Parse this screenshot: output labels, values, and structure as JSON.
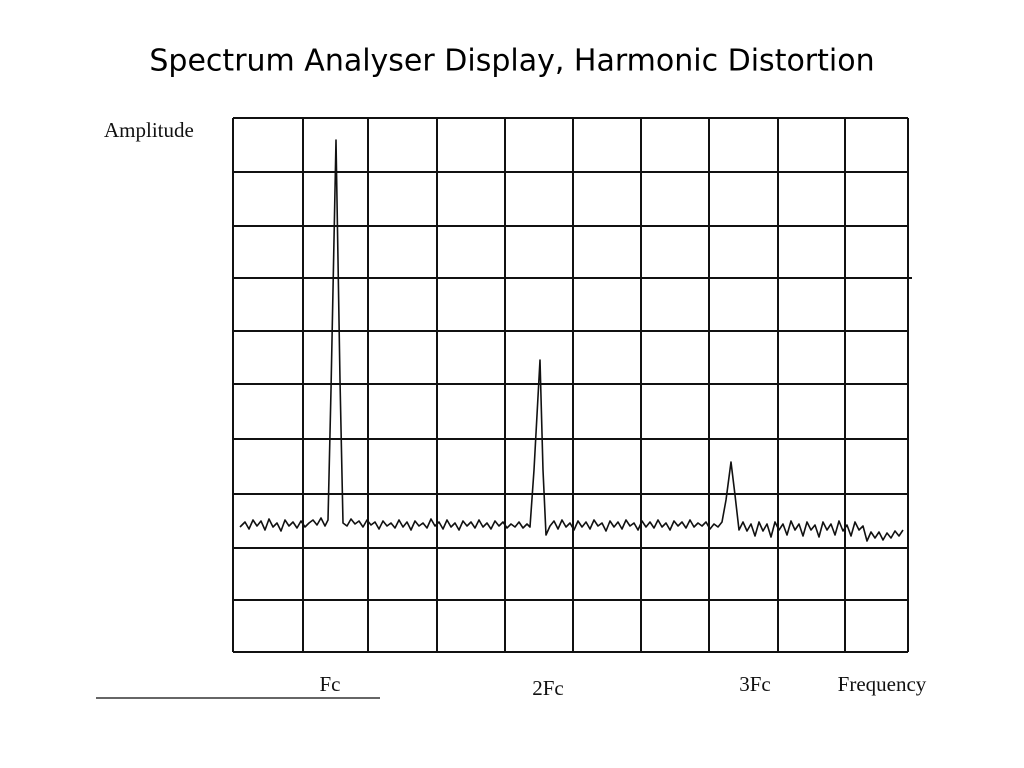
{
  "title": "Spectrum Analyser Display, Harmonic Distortion",
  "figure": {
    "y_label": "Amplitude",
    "x_label": "Frequency",
    "markers": [
      "Fc",
      "2Fc",
      "3Fc"
    ]
  }
}
